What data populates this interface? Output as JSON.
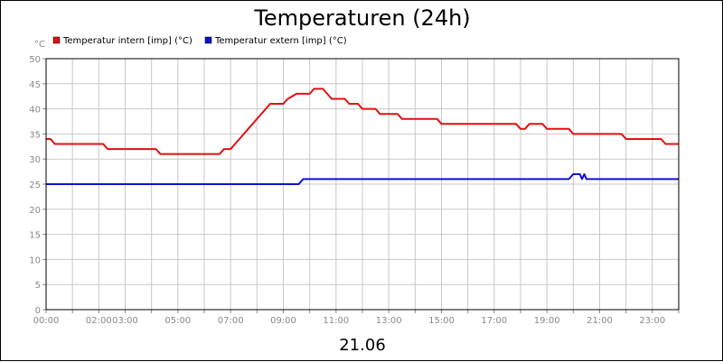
{
  "chart_data": {
    "type": "line",
    "title": "Temperaturen (24h)",
    "unit_label": "°C",
    "date_label": "21.06",
    "ylim": [
      0,
      50
    ],
    "yticks": [
      0,
      5,
      10,
      15,
      20,
      25,
      30,
      35,
      40,
      45,
      50
    ],
    "xlim": [
      "00:00",
      "24:00"
    ],
    "xtick_labels": [
      "00:00",
      "02:00",
      "03:00",
      "05:00",
      "07:00",
      "09:00",
      "11:00",
      "13:00",
      "15:00",
      "17:00",
      "19:00",
      "21:00",
      "23:00"
    ],
    "grid": true,
    "legend_position": "top-left",
    "series": [
      {
        "name": "Temperatur intern [imp] (°C)",
        "color": "#e01010",
        "points": [
          [
            "00:00",
            34
          ],
          [
            "00:10",
            34
          ],
          [
            "00:20",
            33
          ],
          [
            "00:45",
            33
          ],
          [
            "02:10",
            33
          ],
          [
            "02:20",
            32
          ],
          [
            "03:00",
            32
          ],
          [
            "04:10",
            32
          ],
          [
            "04:20",
            31
          ],
          [
            "05:00",
            31
          ],
          [
            "06:35",
            31
          ],
          [
            "06:45",
            32
          ],
          [
            "07:00",
            32
          ],
          [
            "07:10",
            33
          ],
          [
            "07:20",
            34
          ],
          [
            "07:30",
            35
          ],
          [
            "07:40",
            36
          ],
          [
            "07:50",
            37
          ],
          [
            "08:00",
            38
          ],
          [
            "08:10",
            39
          ],
          [
            "08:20",
            40
          ],
          [
            "08:30",
            41
          ],
          [
            "09:00",
            41
          ],
          [
            "09:10",
            42
          ],
          [
            "09:30",
            43
          ],
          [
            "10:00",
            43
          ],
          [
            "10:10",
            44
          ],
          [
            "10:30",
            44
          ],
          [
            "10:40",
            43
          ],
          [
            "10:50",
            42
          ],
          [
            "11:20",
            42
          ],
          [
            "11:30",
            41
          ],
          [
            "11:50",
            41
          ],
          [
            "12:00",
            40
          ],
          [
            "12:30",
            40
          ],
          [
            "12:40",
            39
          ],
          [
            "13:20",
            39
          ],
          [
            "13:30",
            38
          ],
          [
            "14:50",
            38
          ],
          [
            "15:00",
            37
          ],
          [
            "17:50",
            37
          ],
          [
            "18:00",
            36
          ],
          [
            "18:10",
            36
          ],
          [
            "18:20",
            37
          ],
          [
            "18:50",
            37
          ],
          [
            "19:00",
            36
          ],
          [
            "19:50",
            36
          ],
          [
            "20:00",
            35
          ],
          [
            "21:50",
            35
          ],
          [
            "22:00",
            34
          ],
          [
            "23:20",
            34
          ],
          [
            "23:30",
            33
          ],
          [
            "24:00",
            33
          ]
        ]
      },
      {
        "name": "Temperatur extern [imp] (°C)",
        "color": "#1010d0",
        "points": [
          [
            "00:00",
            25
          ],
          [
            "09:35",
            25
          ],
          [
            "09:45",
            26
          ],
          [
            "19:50",
            26
          ],
          [
            "20:00",
            27
          ],
          [
            "20:15",
            27
          ],
          [
            "20:20",
            26
          ],
          [
            "20:25",
            27
          ],
          [
            "20:30",
            26
          ],
          [
            "24:00",
            26
          ]
        ]
      }
    ]
  }
}
